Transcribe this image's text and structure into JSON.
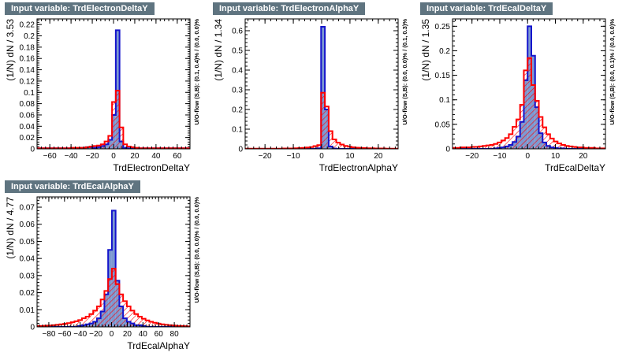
{
  "colors": {
    "signal": "#1414cc",
    "signal_fill": "#7d99d1",
    "background": "#ff0000",
    "hatch": "#ff0000",
    "title_bg": "#5f7480"
  },
  "chart_data": [
    {
      "type": "bar",
      "title": "Input variable: TrdElectronDeltaY",
      "xlabel": "TrdElectronDeltaY",
      "ylabel": "(1/N) dN / 3.53",
      "side_label": "U/O-flow (S,B): (0.1, 0.4)% / (0.0, 0.0)%",
      "xlim": [
        -72,
        72
      ],
      "ylim": [
        0,
        0.23
      ],
      "xticks": [
        -60,
        -40,
        -20,
        0,
        20,
        40,
        60
      ],
      "yticks": [
        0,
        0.02,
        0.04,
        0.06,
        0.08,
        0.1,
        0.12,
        0.14,
        0.16,
        0.18,
        0.2,
        0.22
      ],
      "legend": "none",
      "bin_start": -72,
      "bin_width": 3.53,
      "series": [
        {
          "name": "Signal",
          "values": [
            0.001,
            0.001,
            0.001,
            0.001,
            0.001,
            0.001,
            0.001,
            0.001,
            0.001,
            0.001,
            0.001,
            0.001,
            0.002,
            0.003,
            0.003,
            0.002,
            0.003,
            0.005,
            0.008,
            0.016,
            0.06,
            0.21,
            0.013,
            0.002,
            0.001,
            0.001,
            0.001,
            0.001,
            0.001,
            0.001,
            0.001,
            0.001,
            0.001,
            0.001,
            0.001,
            0.001,
            0.001,
            0.001,
            0.001,
            0.001,
            0.001
          ]
        },
        {
          "name": "Background",
          "values": [
            0.001,
            0.001,
            0.001,
            0.001,
            0.001,
            0.001,
            0.001,
            0.001,
            0.001,
            0.002,
            0.002,
            0.002,
            0.002,
            0.003,
            0.004,
            0.005,
            0.006,
            0.008,
            0.013,
            0.023,
            0.083,
            0.103,
            0.038,
            0.008,
            0.004,
            0.003,
            0.002,
            0.001,
            0.001,
            0.001,
            0.001,
            0.001,
            0.001,
            0.001,
            0.001,
            0.001,
            0.001,
            0.001,
            0.001,
            0.001,
            0.001
          ]
        }
      ]
    },
    {
      "type": "bar",
      "title": "Input variable: TrdElectronAlphaY",
      "xlabel": "TrdElectronAlphaY",
      "ylabel": "(1/N) dN / 1.34",
      "side_label": "U/O-flow (S,B): (0.0, 0.0)% / (0.1, 0.3)%",
      "xlim": [
        -27,
        27
      ],
      "ylim": [
        0,
        0.66
      ],
      "xticks": [
        -20,
        -10,
        0,
        10,
        20
      ],
      "yticks": [
        0,
        0.1,
        0.2,
        0.3,
        0.4,
        0.5,
        0.6
      ],
      "legend": "none",
      "bin_start": -27,
      "bin_width": 1.34,
      "series": [
        {
          "name": "Signal",
          "values": [
            0,
            0,
            0,
            0,
            0,
            0,
            0,
            0,
            0,
            0,
            0,
            0,
            0,
            0,
            0,
            0,
            0,
            0,
            0,
            0.003,
            0.62,
            0.2,
            0.012,
            0.002,
            0,
            0,
            0,
            0,
            0,
            0,
            0,
            0,
            0,
            0,
            0,
            0,
            0,
            0,
            0,
            0,
            0
          ]
        },
        {
          "name": "Background",
          "values": [
            0.001,
            0.001,
            0.001,
            0.001,
            0.001,
            0.001,
            0.001,
            0.001,
            0.001,
            0.001,
            0.002,
            0.002,
            0.002,
            0.003,
            0.004,
            0.005,
            0.007,
            0.009,
            0.014,
            0.019,
            0.285,
            0.215,
            0.09,
            0.048,
            0.032,
            0.022,
            0.015,
            0.011,
            0.008,
            0.006,
            0.005,
            0.004,
            0.003,
            0.003,
            0.002,
            0.002,
            0.002,
            0.001,
            0.001,
            0.001,
            0.001
          ]
        }
      ]
    },
    {
      "type": "bar",
      "title": "Input variable: TrdEcalDeltaY",
      "xlabel": "TrdEcalDeltaY",
      "ylabel": "(1/N) dN / 1.35",
      "side_label": "U/O-flow (S,B): (0.0, 0.1)% / (0.0, 0.0)%",
      "xlim": [
        -27,
        28
      ],
      "ylim": [
        0,
        0.265
      ],
      "xticks": [
        -20,
        -10,
        0,
        10,
        20
      ],
      "yticks": [
        0,
        0.05,
        0.1,
        0.15,
        0.2,
        0.25
      ],
      "legend": "none",
      "bin_start": -27,
      "bin_width": 1.35,
      "series": [
        {
          "name": "Signal",
          "values": [
            0,
            0,
            0,
            0,
            0,
            0,
            0,
            0,
            0,
            0,
            0,
            0.001,
            0.002,
            0.003,
            0.005,
            0.008,
            0.014,
            0.025,
            0.055,
            0.14,
            0.25,
            0.19,
            0.085,
            0.032,
            0.013,
            0.006,
            0.003,
            0.002,
            0.001,
            0.001,
            0,
            0,
            0,
            0,
            0,
            0,
            0,
            0,
            0,
            0,
            0
          ]
        },
        {
          "name": "Background",
          "values": [
            0.002,
            0.002,
            0.003,
            0.003,
            0.003,
            0.004,
            0.004,
            0.005,
            0.006,
            0.007,
            0.008,
            0.01,
            0.013,
            0.017,
            0.022,
            0.03,
            0.045,
            0.06,
            0.09,
            0.16,
            0.185,
            0.13,
            0.098,
            0.065,
            0.044,
            0.03,
            0.021,
            0.015,
            0.011,
            0.008,
            0.006,
            0.005,
            0.004,
            0.003,
            0.003,
            0.002,
            0.002,
            0.002,
            0.001,
            0.001,
            0.001
          ]
        }
      ]
    },
    {
      "type": "bar",
      "title": "Input variable: TrdEcalAlphaY",
      "xlabel": "TrdEcalAlphaY",
      "ylabel": "(1/N) dN / 4.77",
      "side_label": "U/O-flow (S,B): (0.0, 0.0)% / (0.0, 0.0)%",
      "xlim": [
        -95,
        100
      ],
      "ylim": [
        0,
        0.076
      ],
      "xticks": [
        -80,
        -60,
        -40,
        -20,
        0,
        20,
        40,
        60,
        80
      ],
      "yticks": [
        0,
        0.01,
        0.02,
        0.03,
        0.04,
        0.05,
        0.06,
        0.07
      ],
      "legend": "none",
      "bin_start": -95,
      "bin_width": 4.77,
      "series": [
        {
          "name": "Signal",
          "values": [
            0,
            0,
            0,
            0,
            0,
            0,
            0,
            0,
            0,
            0,
            0,
            0.0005,
            0.001,
            0.0015,
            0.002,
            0.003,
            0.005,
            0.009,
            0.019,
            0.045,
            0.068,
            0.027,
            0.012,
            0.005,
            0.003,
            0.002,
            0.001,
            0.001,
            0.0005,
            0,
            0,
            0,
            0,
            0,
            0,
            0,
            0,
            0,
            0,
            0,
            0
          ]
        },
        {
          "name": "Background",
          "values": [
            0.0005,
            0.0005,
            0.0007,
            0.0008,
            0.001,
            0.0012,
            0.0015,
            0.0018,
            0.0022,
            0.0027,
            0.0033,
            0.004,
            0.005,
            0.006,
            0.0075,
            0.0095,
            0.012,
            0.016,
            0.021,
            0.028,
            0.034,
            0.025,
            0.019,
            0.015,
            0.012,
            0.0095,
            0.0075,
            0.006,
            0.0048,
            0.0038,
            0.003,
            0.0024,
            0.0019,
            0.0015,
            0.0012,
            0.001,
            0.0008,
            0.0006,
            0.0005,
            0.0004,
            0.0003
          ]
        }
      ]
    }
  ]
}
